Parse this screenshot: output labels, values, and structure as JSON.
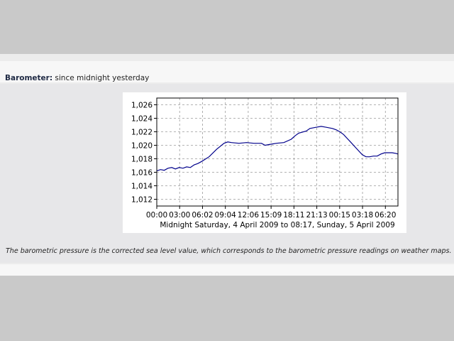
{
  "heading": {
    "label": "Barometer:",
    "text": "since midnight yesterday"
  },
  "note": "The barometric pressure is the corrected sea level value, which corresponds to the barometric pressure readings on weather maps.",
  "chart_data": {
    "type": "line",
    "xlabel": "Midnight Saturday, 4 April 2009 to 08:17, Sunday, 5 April 2009",
    "ylabel": "",
    "x_ticks": [
      "00:00",
      "03:00",
      "06:02",
      "09:04",
      "12:06",
      "15:09",
      "18:11",
      "21:13",
      "00:15",
      "03:18",
      "06:20"
    ],
    "y_ticks": [
      "1,012",
      "1,014",
      "1,016",
      "1,018",
      "1,020",
      "1,022",
      "1,024",
      "1,026"
    ],
    "ylim": [
      1011,
      1027
    ],
    "xlim_hours": [
      0,
      32.28
    ],
    "grid": true,
    "line_color": "#00008b",
    "series": [
      {
        "x_hours": [
          0,
          0.5,
          1,
          1.5,
          2,
          2.5,
          3,
          3.5,
          4,
          4.5,
          5,
          5.5,
          6,
          7,
          8,
          9,
          9.5,
          10,
          11,
          12,
          13,
          14,
          14.5,
          15,
          15.5,
          16,
          17,
          18,
          18.5,
          19,
          20,
          20.5,
          21,
          21.5,
          22,
          22.5,
          23,
          23.5,
          24,
          24.5,
          25,
          25.5,
          26,
          26.5,
          27,
          27.5,
          28,
          28.5,
          29,
          29.5,
          30,
          30.5,
          31,
          31.5,
          32,
          32.28
        ],
        "values": [
          1016.2,
          1016.4,
          1016.3,
          1016.6,
          1016.7,
          1016.5,
          1016.7,
          1016.6,
          1016.8,
          1016.7,
          1017.1,
          1017.3,
          1017.6,
          1018.3,
          1019.4,
          1020.3,
          1020.5,
          1020.4,
          1020.3,
          1020.4,
          1020.3,
          1020.3,
          1020.0,
          1020.1,
          1020.2,
          1020.3,
          1020.4,
          1020.9,
          1021.4,
          1021.8,
          1022.1,
          1022.5,
          1022.6,
          1022.7,
          1022.8,
          1022.7,
          1022.6,
          1022.5,
          1022.3,
          1022.0,
          1021.6,
          1021.0,
          1020.4,
          1019.8,
          1019.2,
          1018.6,
          1018.3,
          1018.3,
          1018.4,
          1018.4,
          1018.7,
          1018.9,
          1018.9,
          1018.9,
          1018.8,
          1018.7
        ]
      }
    ]
  }
}
